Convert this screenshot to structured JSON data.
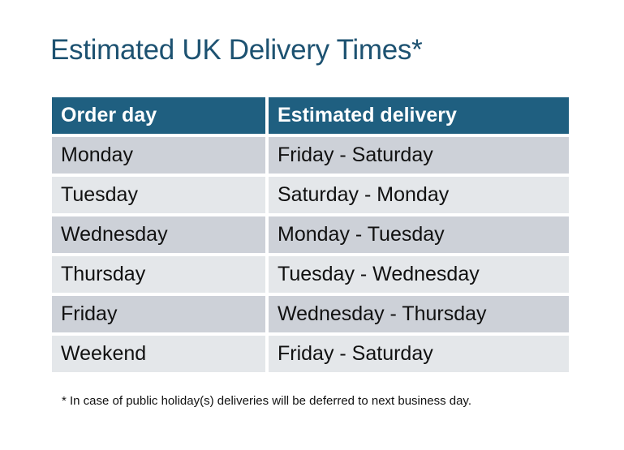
{
  "title": "Estimated UK Delivery Times*",
  "table": {
    "headers": [
      "Order day",
      "Estimated delivery"
    ],
    "rows": [
      [
        "Monday",
        "Friday - Saturday"
      ],
      [
        "Tuesday",
        "Saturday - Monday"
      ],
      [
        "Wednesday",
        "Monday - Tuesday"
      ],
      [
        "Thursday",
        "Tuesday - Wednesday"
      ],
      [
        "Friday",
        "Wednesday - Thursday"
      ],
      [
        "Weekend",
        "Friday - Saturday"
      ]
    ]
  },
  "footnote": "* In case of public holiday(s) deliveries will be deferred to next business day.",
  "colors": {
    "title": "#1d5271",
    "header_bg": "#1f5f80",
    "row_dark": "#cdd1d8",
    "row_light": "#e4e7ea"
  }
}
